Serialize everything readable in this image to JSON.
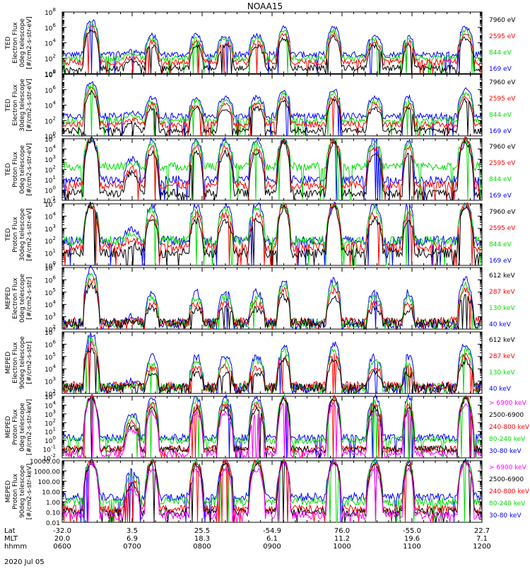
{
  "chart_data": {
    "type": "line",
    "title": "NOAA15",
    "date": "2020 Jul 05",
    "colors": {
      "black": "#000000",
      "red": "#ff0000",
      "green": "#00dd00",
      "blue": "#0000ff",
      "magenta": "#ff00ff"
    },
    "time_axis": {
      "row_labels": [
        "Lat",
        "MLT",
        "hhmm"
      ],
      "xlim_hhmm": [
        600,
        1200
      ],
      "ticks": [
        {
          "lat": "-32.0",
          "mlt": "20.0",
          "hhmm": "0600"
        },
        {
          "lat": "3.5",
          "mlt": "6.9",
          "hhmm": "0700"
        },
        {
          "lat": "25.5",
          "mlt": "18.3",
          "hhmm": "0800"
        },
        {
          "lat": "-54.9",
          "mlt": "6.1",
          "hhmm": "0900"
        },
        {
          "lat": "76.0",
          "mlt": "11.2",
          "hhmm": "1000"
        },
        {
          "lat": "-55.0",
          "mlt": "19.6",
          "hhmm": "1100"
        },
        {
          "lat": "22.7",
          "mlt": "7.1",
          "hhmm": "1200"
        }
      ]
    },
    "panels": [
      {
        "ylabel": [
          "TED",
          "Electron Flux",
          "0deg telescope",
          "[#/cm2-s-str-eV]"
        ],
        "yscale": "log",
        "ylim": [
          1,
          100000000
        ],
        "ticks": [
          {
            "v": 1,
            "label": "10",
            "exp": "0"
          },
          {
            "v": 100,
            "label": "10",
            "exp": "2"
          },
          {
            "v": 10000,
            "label": "10",
            "exp": "4"
          },
          {
            "v": 1000000,
            "label": "10",
            "exp": "6"
          },
          {
            "v": 100000000,
            "label": "10",
            "exp": "8"
          }
        ],
        "series": [
          {
            "name": "7960 eV",
            "color": "#000000",
            "level": 5
          },
          {
            "name": "2595 eV",
            "color": "#ff0000",
            "level": 30
          },
          {
            "name": "844 eV",
            "color": "#00dd00",
            "level": 100
          },
          {
            "name": "169 eV",
            "color": "#0000ff",
            "level": 300
          }
        ]
      },
      {
        "ylabel": [
          "TED",
          "Electron Flux",
          "30deg telescope",
          "[#/cm2-s-str-eV]"
        ],
        "yscale": "log",
        "ylim": [
          1,
          100000000
        ],
        "ticks": [
          {
            "v": 1,
            "label": "10",
            "exp": "0"
          },
          {
            "v": 100,
            "label": "10",
            "exp": "2"
          },
          {
            "v": 10000,
            "label": "10",
            "exp": "4"
          },
          {
            "v": 1000000,
            "label": "10",
            "exp": "6"
          },
          {
            "v": 100000000,
            "label": "10",
            "exp": "8"
          }
        ],
        "series": [
          {
            "name": "7960 eV",
            "color": "#000000",
            "level": 5
          },
          {
            "name": "2595 eV",
            "color": "#ff0000",
            "level": 30
          },
          {
            "name": "844 eV",
            "color": "#00dd00",
            "level": 100
          },
          {
            "name": "169 eV",
            "color": "#0000ff",
            "level": 400
          }
        ]
      },
      {
        "ylabel": [
          "TED",
          "Proton Flux",
          "0deg telescope",
          "[#/cm2-s-str-eV]"
        ],
        "yscale": "log",
        "ylim": [
          0.1,
          100000
        ],
        "ticks": [
          {
            "v": 0.1,
            "label": "10",
            "exp": "-1"
          },
          {
            "v": 1,
            "label": "10",
            "exp": "0"
          },
          {
            "v": 10,
            "label": "10",
            "exp": "1"
          },
          {
            "v": 100,
            "label": "10",
            "exp": "2"
          },
          {
            "v": 1000,
            "label": "10",
            "exp": "3"
          },
          {
            "v": 10000,
            "label": "10",
            "exp": "4"
          },
          {
            "v": 100000,
            "label": "10",
            "exp": "5"
          }
        ],
        "series": [
          {
            "name": "7960 eV",
            "color": "#000000",
            "level": 0.5
          },
          {
            "name": "2595 eV",
            "color": "#ff0000",
            "level": 3
          },
          {
            "name": "844 eV",
            "color": "#00dd00",
            "level": 200
          },
          {
            "name": "169 eV",
            "color": "#0000ff",
            "level": 10
          }
        ]
      },
      {
        "ylabel": [
          "TED",
          "Proton Flux",
          "30deg telescope",
          "[#/cm2-s-str-eV]"
        ],
        "yscale": "log",
        "ylim": [
          1,
          100000
        ],
        "ticks": [
          {
            "v": 1,
            "label": "10",
            "exp": "0"
          },
          {
            "v": 10,
            "label": "10",
            "exp": "1"
          },
          {
            "v": 100,
            "label": "10",
            "exp": "2"
          },
          {
            "v": 1000,
            "label": "10",
            "exp": "3"
          },
          {
            "v": 10000,
            "label": "10",
            "exp": "4"
          },
          {
            "v": 100000,
            "label": "10",
            "exp": "5"
          }
        ],
        "series": [
          {
            "name": "7960 eV",
            "color": "#000000",
            "level": 10
          },
          {
            "name": "2595 eV",
            "color": "#ff0000",
            "level": 30
          },
          {
            "name": "844 eV",
            "color": "#00dd00",
            "level": 100
          },
          {
            "name": "169 eV",
            "color": "#0000ff",
            "level": 100
          }
        ]
      },
      {
        "ylabel": [
          "MEPED",
          "Electron Flux",
          "0deg telescope",
          "[#/cm2-s-str]"
        ],
        "yscale": "log",
        "ylim": [
          100,
          10000000
        ],
        "ticks": [
          {
            "v": 100,
            "label": "10",
            "exp": "2"
          },
          {
            "v": 1000,
            "label": "10",
            "exp": "3"
          },
          {
            "v": 10000,
            "label": "10",
            "exp": "4"
          },
          {
            "v": 100000,
            "label": "10",
            "exp": "5"
          },
          {
            "v": 1000000,
            "label": "10",
            "exp": "6"
          },
          {
            "v": 10000000,
            "label": "10",
            "exp": "7"
          }
        ],
        "series": [
          {
            "name": "612 keV",
            "color": "#000000",
            "level": 300
          },
          {
            "name": "287 keV",
            "color": "#ff0000",
            "level": 400
          },
          {
            "name": "130 keV",
            "color": "#00dd00",
            "level": 300
          },
          {
            "name": "40 keV",
            "color": "#0000ff",
            "level": 300
          }
        ]
      },
      {
        "ylabel": [
          "MEPED",
          "Electron Flux",
          "90deg telescope",
          "[#/cm2-s-str]"
        ],
        "yscale": "log",
        "ylim": [
          100,
          10000000
        ],
        "ticks": [
          {
            "v": 100,
            "label": "10",
            "exp": "2"
          },
          {
            "v": 1000,
            "label": "10",
            "exp": "3"
          },
          {
            "v": 10000,
            "label": "10",
            "exp": "4"
          },
          {
            "v": 100000,
            "label": "10",
            "exp": "5"
          },
          {
            "v": 1000000,
            "label": "10",
            "exp": "6"
          },
          {
            "v": 10000000,
            "label": "10",
            "exp": "7"
          }
        ],
        "series": [
          {
            "name": "612 keV",
            "color": "#000000",
            "level": 300
          },
          {
            "name": "287 keV",
            "color": "#ff0000",
            "level": 400
          },
          {
            "name": "130 keV",
            "color": "#00dd00",
            "level": 300
          },
          {
            "name": "40 keV",
            "color": "#0000ff",
            "level": 300
          }
        ]
      },
      {
        "ylabel": [
          "MEPED",
          "Proton Flux",
          "0deg telescope",
          "[#/cm2-s-str-keV]"
        ],
        "yscale": "log",
        "ylim": [
          0.01,
          100000
        ],
        "ticks": [
          {
            "v": 0.01,
            "label": "10",
            "exp": "-2"
          },
          {
            "v": 0.1,
            "label": "10",
            "exp": "-1"
          },
          {
            "v": 1,
            "label": "10",
            "exp": "0"
          },
          {
            "v": 10,
            "label": "10",
            "exp": "1"
          },
          {
            "v": 100,
            "label": "10",
            "exp": "2"
          },
          {
            "v": 1000,
            "label": "10",
            "exp": "3"
          },
          {
            "v": 10000,
            "label": "10",
            "exp": "4"
          },
          {
            "v": 100000,
            "label": "10",
            "exp": "5"
          }
        ],
        "series": [
          {
            "name": "> 6900 keV",
            "color": "#ff00ff",
            "level": 0.03
          },
          {
            "name": "2500-6900",
            "color": "#000000",
            "level": 0.1
          },
          {
            "name": "240-800 keV",
            "color": "#ff0000",
            "level": 0.1
          },
          {
            "name": "80-240 keV",
            "color": "#00dd00",
            "level": 1
          },
          {
            "name": "30-80 keV",
            "color": "#0000ff",
            "level": 2
          }
        ]
      },
      {
        "ylabel": [
          "MEPED",
          "Proton Flux",
          "90deg telescope",
          "[#/cm2-s-str-keV]"
        ],
        "yscale": "log",
        "ylim": [
          0.01,
          10000
        ],
        "ticks": [
          {
            "v": 0.01,
            "label": "0.01"
          },
          {
            "v": 0.1,
            "label": "0.10"
          },
          {
            "v": 1,
            "label": "1.00"
          },
          {
            "v": 10,
            "label": "10.00"
          },
          {
            "v": 100,
            "label": "100.00"
          },
          {
            "v": 1000,
            "label": "1000.00"
          },
          {
            "v": 10000,
            "label": "10000.00"
          }
        ],
        "series": [
          {
            "name": "> 6900 keV",
            "color": "#ff00ff",
            "level": 0.05
          },
          {
            "name": "2500-6900",
            "color": "#000000",
            "level": 0.1
          },
          {
            "name": "240-800 keV",
            "color": "#ff0000",
            "level": 0.2
          },
          {
            "name": "80-240 keV",
            "color": "#00dd00",
            "level": 1
          },
          {
            "name": "30-80 keV",
            "color": "#0000ff",
            "level": 3
          }
        ]
      }
    ],
    "passes_hhmm": [
      {
        "center": 625,
        "width": 14,
        "peak": 10000000
      },
      {
        "center": 700,
        "width": 14,
        "peak": 1000
      },
      {
        "center": 717,
        "width": 12,
        "peak": 100000
      },
      {
        "center": 755,
        "width": 12,
        "peak": 100000
      },
      {
        "center": 820,
        "width": 14,
        "peak": 100000
      },
      {
        "center": 847,
        "width": 14,
        "peak": 100000
      },
      {
        "center": 910,
        "width": 12,
        "peak": 1000000
      },
      {
        "center": 953,
        "width": 13,
        "peak": 1000000
      },
      {
        "center": 1028,
        "width": 14,
        "peak": 100000
      },
      {
        "center": 1057,
        "width": 10,
        "peak": 100000
      },
      {
        "center": 1146,
        "width": 14,
        "peak": 1000000
      }
    ]
  }
}
